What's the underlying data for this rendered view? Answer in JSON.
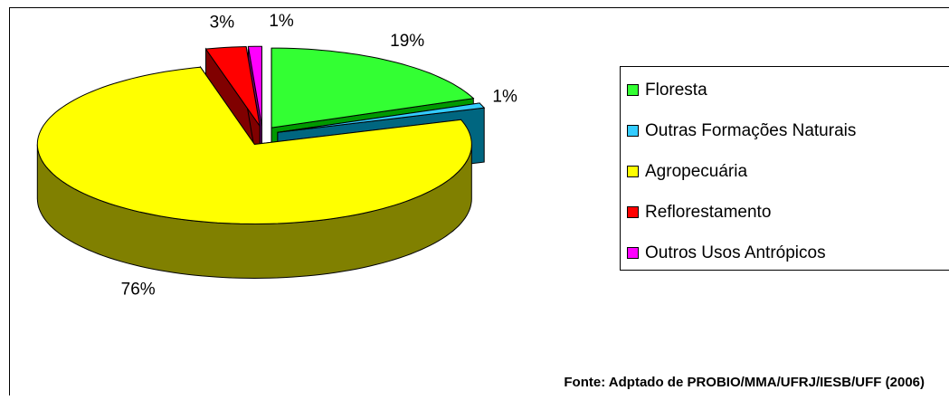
{
  "chart_data": {
    "type": "pie",
    "categories": [
      "Floresta",
      "Outras Formações Naturais",
      "Agropecuária",
      "Reflorestamento",
      "Outros Usos Antrópicos"
    ],
    "values": [
      19,
      1,
      76,
      3,
      1
    ],
    "value_labels": [
      "19%",
      "1%",
      "76%",
      "3%",
      "1%"
    ],
    "colors": [
      "#33ff33",
      "#33ccff",
      "#ffff00",
      "#ff0000",
      "#ff00ff"
    ],
    "side_colors": [
      "#009900",
      "#006680",
      "#808000",
      "#800000",
      "#800080"
    ],
    "legend": "right",
    "annotation": "Fonte: Adptado de  PROBIO/MMA/UFRJ/IESB/UFF (2006)"
  }
}
